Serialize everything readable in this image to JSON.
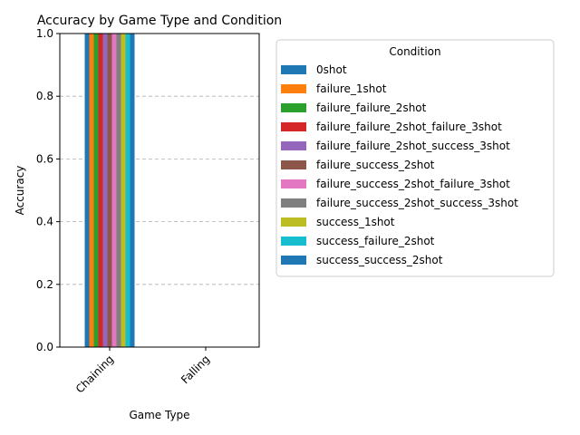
{
  "chart_data": {
    "type": "bar",
    "title": "Accuracy by Game Type and Condition",
    "xlabel": "Game Type",
    "ylabel": "Accuracy",
    "ylim": [
      0,
      1.0
    ],
    "yticks": [
      "0.0",
      "0.2",
      "0.4",
      "0.6",
      "0.8",
      "1.0"
    ],
    "grid": "y, dashed",
    "categories": [
      "Chaining",
      "Falling"
    ],
    "legend": {
      "title": "Condition",
      "placement": "outside right, top"
    },
    "series": [
      {
        "name": "0shot",
        "color": "#1f77b4",
        "values": [
          1.0,
          0
        ]
      },
      {
        "name": "failure_1shot",
        "color": "#ff7f0e",
        "values": [
          1.0,
          0
        ]
      },
      {
        "name": "failure_failure_2shot",
        "color": "#2ca02c",
        "values": [
          1.0,
          0
        ]
      },
      {
        "name": "failure_failure_2shot_failure_3shot",
        "color": "#d62728",
        "values": [
          1.0,
          0
        ]
      },
      {
        "name": "failure_failure_2shot_success_3shot",
        "color": "#9467bd",
        "values": [
          1.0,
          0
        ]
      },
      {
        "name": "failure_success_2shot",
        "color": "#8c564b",
        "values": [
          1.0,
          0
        ]
      },
      {
        "name": "failure_success_2shot_failure_3shot",
        "color": "#e377c2",
        "values": [
          1.0,
          0
        ]
      },
      {
        "name": "failure_success_2shot_success_3shot",
        "color": "#7f7f7f",
        "values": [
          1.0,
          0
        ]
      },
      {
        "name": "success_1shot",
        "color": "#bcbd22",
        "values": [
          1.0,
          0
        ]
      },
      {
        "name": "success_failure_2shot",
        "color": "#17becf",
        "values": [
          1.0,
          0
        ]
      },
      {
        "name": "success_success_2shot",
        "color": "#1f77b4",
        "values": [
          1.0,
          0
        ]
      }
    ]
  }
}
